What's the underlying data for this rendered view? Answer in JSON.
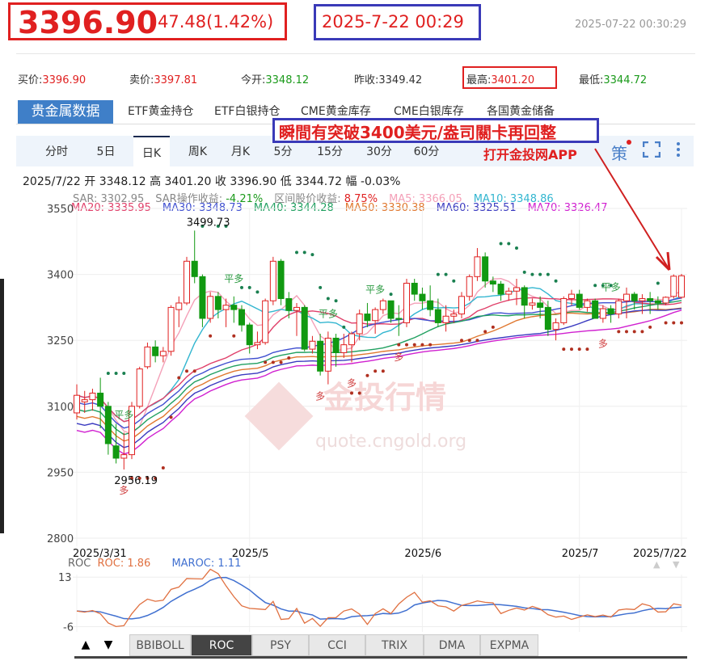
{
  "header": {
    "price": "3396.90",
    "change": "47.48(1.42%)",
    "annotation_time": "2025-7-22 00:29",
    "timestamp": "2025-07-22 00:30:29"
  },
  "quotes": [
    {
      "label": "买价:",
      "value": "3396.90",
      "color": "#e02020"
    },
    {
      "label": "卖价:",
      "value": "3397.81",
      "color": "#e02020"
    },
    {
      "label": "今开:",
      "value": "3348.12",
      "color": "#1a9a1a"
    },
    {
      "label": "昨收:",
      "value": "3349.42",
      "color": "#333333"
    },
    {
      "label": "最高:",
      "value": "3401.20",
      "color": "#e02020"
    },
    {
      "label": "最低:",
      "value": "3344.72",
      "color": "#1a9a1a"
    }
  ],
  "tabs": [
    "贵金属数据",
    "ETF黄金持仓",
    "ETF白银持仓",
    "CME黄金库存",
    "CME白银库存",
    "各国黄金储备"
  ],
  "annotation": "瞬間有突破3400美元/盎司關卡再回整",
  "app_link": "打开金投网APP",
  "periods": [
    "分时",
    "5日",
    "日K",
    "周K",
    "月K",
    "5分",
    "15分",
    "30分",
    "60分"
  ],
  "active_period": "日K",
  "strategy_label": "策",
  "info": {
    "date": "2025/7/22",
    "open_label": "开",
    "open": "3348.12",
    "high_label": "高",
    "high": "3401.20",
    "close_label": "收",
    "close": "3396.90",
    "low_label": "低",
    "low": "3344.72",
    "amp_label": "幅",
    "amp": "-0.03%"
  },
  "legend1": [
    {
      "text": "SAR: 3302.95",
      "color": "#888888"
    },
    {
      "text": "SAR操作收益: ",
      "color": "#888888"
    },
    {
      "text": "-4.21%",
      "color": "#1a9a1a"
    },
    {
      "text": "区间股价收益: ",
      "color": "#888888"
    },
    {
      "text": "8.75%",
      "color": "#e02020"
    },
    {
      "text": "MA5: 3366.05",
      "color": "#f4a0b8"
    },
    {
      "text": "MA10: 3348.86",
      "color": "#33b6d0"
    }
  ],
  "legend2": [
    {
      "text": "MA20: 3335.95",
      "color": "#e0406a"
    },
    {
      "text": "MA30: 3348.73",
      "color": "#4050d0"
    },
    {
      "text": "MA40: 3344.28",
      "color": "#20a060"
    },
    {
      "text": "MA50: 3330.38",
      "color": "#e07830"
    },
    {
      "text": "MA60: 3325.51",
      "color": "#3a3ac0"
    },
    {
      "text": "MA70: 3326.47",
      "color": "#d020d0"
    }
  ],
  "watermark": {
    "cn": "金投行情",
    "url": "quote.cngold.org"
  },
  "chart_data": {
    "type": "candlestick",
    "ylim": [
      2800,
      3550
    ],
    "yticks": [
      "3550",
      "3400",
      "3250",
      "3100",
      "2950",
      "2800"
    ],
    "xticks": [
      "2025/3/31",
      "2025/5",
      "2025/6",
      "2025/7",
      "2025/7/22"
    ],
    "max_label": "3499.73",
    "min_label": "2956.19",
    "signals": [
      "平多",
      "平多",
      "平多",
      "平多",
      "平多",
      "多",
      "多",
      "多",
      "多",
      "多"
    ],
    "ma_periods": [
      5,
      10,
      20,
      30,
      40,
      50,
      60,
      70
    ],
    "ma_colors": [
      "#f4a0b8",
      "#33b6d0",
      "#e0406a",
      "#4050d0",
      "#20a060",
      "#e07830",
      "#3a3ac0",
      "#d020d0"
    ],
    "up_color": "#e02020",
    "down_color": "#119911",
    "candles": [
      [
        3085,
        3150,
        3070,
        3125
      ],
      [
        3110,
        3135,
        3085,
        3115
      ],
      [
        3115,
        3140,
        3090,
        3130
      ],
      [
        3130,
        3165,
        3050,
        3100
      ],
      [
        3100,
        3110,
        2990,
        3015
      ],
      [
        3010,
        3060,
        2970,
        2982
      ],
      [
        2982,
        3040,
        2956.19,
        2990
      ],
      [
        2990,
        3110,
        2980,
        3100
      ],
      [
        3100,
        3190,
        3095,
        3185
      ],
      [
        3190,
        3245,
        3185,
        3235
      ],
      [
        3235,
        3250,
        3200,
        3215
      ],
      [
        3215,
        3235,
        3200,
        3225
      ],
      [
        3225,
        3330,
        3215,
        3325
      ],
      [
        3320,
        3350,
        3280,
        3335
      ],
      [
        3335,
        3440,
        3330,
        3430
      ],
      [
        3430,
        3499.73,
        3380,
        3395
      ],
      [
        3395,
        3400,
        3280,
        3300
      ],
      [
        3300,
        3360,
        3290,
        3350
      ],
      [
        3350,
        3360,
        3300,
        3320
      ],
      [
        3320,
        3345,
        3280,
        3330
      ],
      [
        3330,
        3350,
        3290,
        3320
      ],
      [
        3320,
        3330,
        3270,
        3285
      ],
      [
        3285,
        3290,
        3220,
        3240
      ],
      [
        3240,
        3270,
        3230,
        3245
      ],
      [
        3245,
        3345,
        3240,
        3340
      ],
      [
        3340,
        3440,
        3330,
        3430
      ],
      [
        3430,
        3435,
        3330,
        3345
      ],
      [
        3345,
        3360,
        3300,
        3318
      ],
      [
        3318,
        3335,
        3260,
        3325
      ],
      [
        3325,
        3330,
        3225,
        3230
      ],
      [
        3230,
        3260,
        3220,
        3248
      ],
      [
        3248,
        3265,
        3170,
        3180
      ],
      [
        3180,
        3270,
        3150,
        3255
      ],
      [
        3255,
        3265,
        3190,
        3222
      ],
      [
        3222,
        3265,
        3210,
        3240
      ],
      [
        3240,
        3270,
        3200,
        3265
      ],
      [
        3265,
        3320,
        3250,
        3310
      ],
      [
        3310,
        3335,
        3280,
        3295
      ],
      [
        3295,
        3325,
        3265,
        3320
      ],
      [
        3320,
        3345,
        3310,
        3340
      ],
      [
        3340,
        3340,
        3290,
        3300
      ],
      [
        3300,
        3330,
        3260,
        3298
      ],
      [
        3290,
        3390,
        3280,
        3380
      ],
      [
        3380,
        3390,
        3340,
        3355
      ],
      [
        3355,
        3370,
        3320,
        3340
      ],
      [
        3340,
        3375,
        3305,
        3320
      ],
      [
        3320,
        3345,
        3280,
        3290
      ],
      [
        3290,
        3330,
        3270,
        3305
      ],
      [
        3305,
        3320,
        3290,
        3310
      ],
      [
        3310,
        3360,
        3300,
        3350
      ],
      [
        3350,
        3400,
        3340,
        3395
      ],
      [
        3395,
        3460,
        3385,
        3440
      ],
      [
        3440,
        3450,
        3370,
        3385
      ],
      [
        3385,
        3395,
        3360,
        3378
      ],
      [
        3378,
        3385,
        3340,
        3355
      ],
      [
        3355,
        3370,
        3340,
        3362
      ],
      [
        3362,
        3390,
        3330,
        3370
      ],
      [
        3370,
        3375,
        3300,
        3330
      ],
      [
        3330,
        3345,
        3320,
        3335
      ],
      [
        3335,
        3350,
        3300,
        3325
      ],
      [
        3325,
        3340,
        3260,
        3275
      ],
      [
        3275,
        3300,
        3250,
        3290
      ],
      [
        3290,
        3350,
        3285,
        3345
      ],
      [
        3345,
        3365,
        3330,
        3355
      ],
      [
        3355,
        3365,
        3320,
        3325
      ],
      [
        3325,
        3345,
        3315,
        3340
      ],
      [
        3340,
        3345,
        3300,
        3300
      ],
      [
        3300,
        3330,
        3290,
        3322
      ],
      [
        3322,
        3330,
        3290,
        3310
      ],
      [
        3310,
        3345,
        3300,
        3340
      ],
      [
        3340,
        3370,
        3300,
        3355
      ],
      [
        3355,
        3360,
        3320,
        3340
      ],
      [
        3340,
        3355,
        3310,
        3345
      ],
      [
        3345,
        3360,
        3310,
        3340
      ],
      [
        3340,
        3350,
        3320,
        3335
      ],
      [
        3335,
        3350,
        3330,
        3348
      ],
      [
        3350,
        3400,
        3345,
        3396
      ],
      [
        3348.12,
        3401.2,
        3344.72,
        3396.9
      ]
    ],
    "sub": {
      "name": "ROC",
      "roc_label": "ROC: 1.86",
      "maroc_label": "MAROC: 1.11",
      "yticks": [
        "13",
        "-6"
      ],
      "ylim": [
        -8,
        14
      ],
      "roc_color": "#e07040",
      "maroc_color": "#4070d0"
    }
  },
  "indicator_tabs": [
    "BBIBOLL",
    "ROC",
    "PSY",
    "CCI",
    "TRIX",
    "DMA",
    "EXPMA"
  ],
  "active_indicator": "ROC",
  "arrows": {
    "up": "▲",
    "down": "▼"
  }
}
